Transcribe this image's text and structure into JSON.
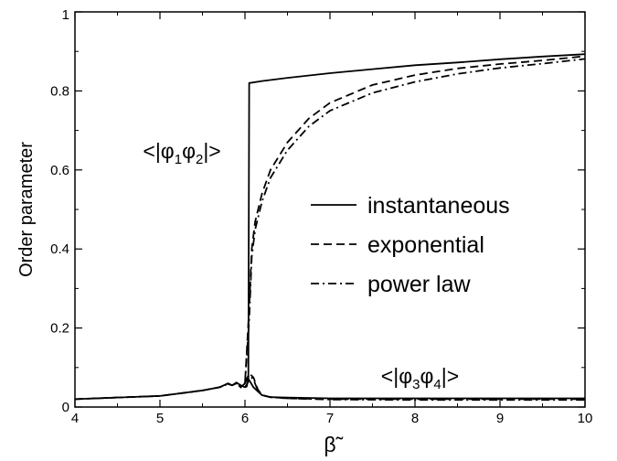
{
  "chart_data": {
    "type": "line",
    "xlabel": "β̃",
    "ylabel": "Order parameter",
    "xlim": [
      4,
      10
    ],
    "ylim": [
      0,
      1
    ],
    "x_ticks": [
      4,
      5,
      6,
      7,
      8,
      9,
      10
    ],
    "y_ticks": [
      0,
      0.2,
      0.4,
      0.6,
      0.8,
      1
    ],
    "y_tick_labels": [
      "0",
      "0.2",
      "0.4",
      "0.6",
      "0.8",
      "1"
    ],
    "legend_position": "center-right",
    "grid": false,
    "annotations": [
      {
        "text_parts": [
          "<|φ",
          "1",
          "φ",
          "2",
          "|>"
        ],
        "sub_index": [
          1,
          3
        ],
        "x": 4.8,
        "y": 0.63
      },
      {
        "text_parts": [
          "<|φ",
          "3",
          "φ",
          "4",
          "|>"
        ],
        "sub_index": [
          1,
          3
        ],
        "x": 7.6,
        "y": 0.06
      }
    ],
    "series": [
      {
        "name": "instantaneous",
        "style": "solid",
        "x": [
          4,
          4.5,
          5,
          5.5,
          5.7,
          5.8,
          5.85,
          5.9,
          5.95,
          6.0,
          6.02,
          6.04,
          6.05,
          6.2,
          6.5,
          7,
          7.5,
          8,
          8.5,
          9,
          9.5,
          10
        ],
        "y": [
          0.02,
          0.024,
          0.028,
          0.042,
          0.05,
          0.06,
          0.055,
          0.062,
          0.055,
          0.05,
          0.052,
          0.07,
          0.82,
          0.825,
          0.833,
          0.845,
          0.855,
          0.865,
          0.872,
          0.88,
          0.887,
          0.893
        ]
      },
      {
        "name": "exponential",
        "style": "dashed",
        "x": [
          4,
          4.5,
          5,
          5.5,
          5.7,
          5.8,
          5.85,
          5.9,
          5.95,
          6.0,
          6.05,
          6.08,
          6.12,
          6.2,
          6.3,
          6.5,
          6.75,
          7,
          7.5,
          8,
          8.5,
          9,
          9.5,
          10
        ],
        "y": [
          0.02,
          0.024,
          0.028,
          0.042,
          0.05,
          0.058,
          0.055,
          0.06,
          0.05,
          0.06,
          0.25,
          0.4,
          0.47,
          0.54,
          0.6,
          0.67,
          0.73,
          0.77,
          0.815,
          0.84,
          0.857,
          0.868,
          0.877,
          0.888
        ]
      },
      {
        "name": "power law",
        "style": "dashdot",
        "x": [
          4,
          4.5,
          5,
          5.5,
          5.7,
          5.8,
          5.85,
          5.9,
          5.95,
          6.0,
          6.05,
          6.08,
          6.12,
          6.2,
          6.3,
          6.5,
          6.75,
          7,
          7.5,
          8,
          8.5,
          9,
          9.5,
          10
        ],
        "y": [
          0.02,
          0.024,
          0.028,
          0.042,
          0.05,
          0.058,
          0.055,
          0.06,
          0.05,
          0.06,
          0.22,
          0.38,
          0.45,
          0.52,
          0.58,
          0.65,
          0.71,
          0.75,
          0.795,
          0.823,
          0.843,
          0.858,
          0.869,
          0.881
        ]
      },
      {
        "name": "",
        "style": "solid",
        "x": [
          6.0,
          6.05,
          6.1,
          6.2,
          6.3,
          6.5,
          7,
          8,
          9,
          10
        ],
        "y": [
          0.05,
          0.068,
          0.05,
          0.03,
          0.025,
          0.024,
          0.022,
          0.022,
          0.022,
          0.022
        ]
      },
      {
        "name": "",
        "style": "dashed",
        "x": [
          6.0,
          6.05,
          6.1,
          6.15,
          6.2,
          6.3,
          6.5,
          7,
          8,
          9,
          10
        ],
        "y": [
          0.06,
          0.085,
          0.075,
          0.045,
          0.03,
          0.025,
          0.022,
          0.02,
          0.02,
          0.02,
          0.02
        ]
      },
      {
        "name": "",
        "style": "dashdot",
        "x": [
          6.0,
          6.05,
          6.1,
          6.15,
          6.2,
          6.3,
          6.5,
          7,
          8,
          9,
          10
        ],
        "y": [
          0.06,
          0.08,
          0.07,
          0.042,
          0.03,
          0.025,
          0.022,
          0.019,
          0.018,
          0.018,
          0.018
        ]
      }
    ]
  }
}
